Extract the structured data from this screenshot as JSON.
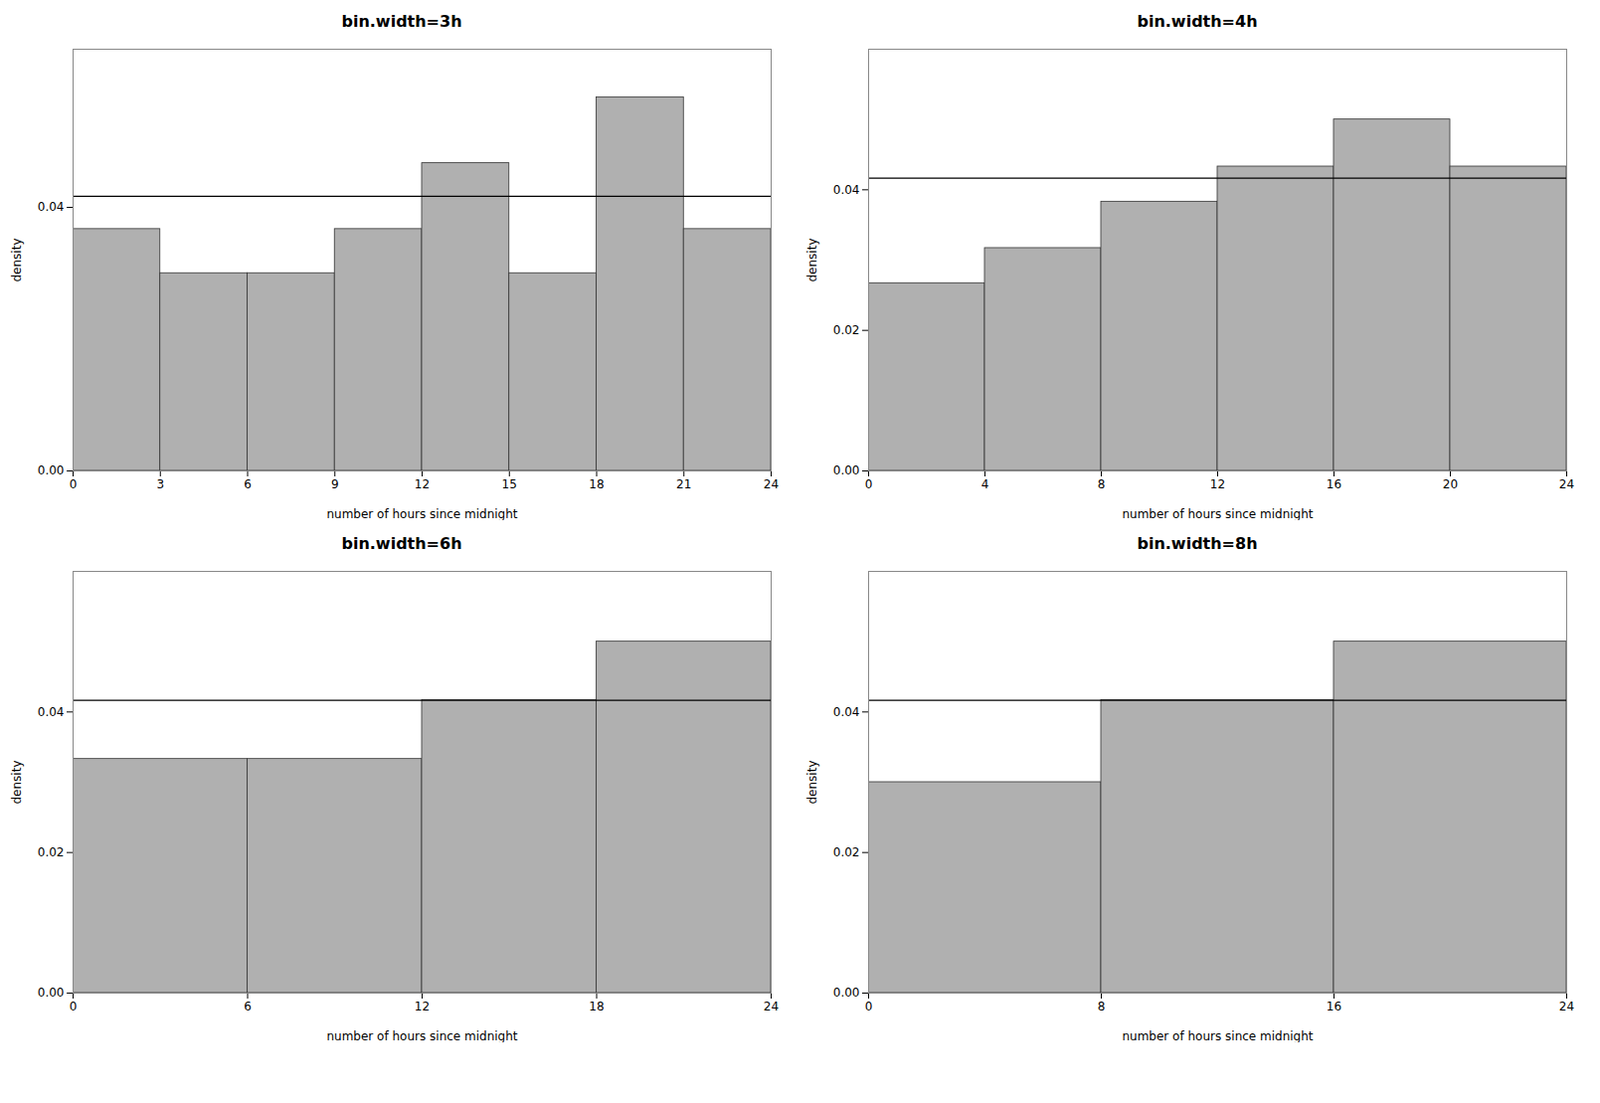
{
  "chart_data": [
    {
      "type": "histogram",
      "title": "bin.width=3h",
      "bins": [
        0,
        3,
        6,
        9,
        12,
        15,
        18,
        21,
        24
      ],
      "values": [
        0.0367,
        0.03,
        0.03,
        0.0367,
        0.0467,
        0.03,
        0.0567,
        0.0367
      ],
      "color": "#b0b0b0",
      "hline": {
        "value": 0.041667,
        "color": "#000000"
      },
      "xlabel": "number of hours since midnight",
      "ylabel": "density",
      "xlim": [
        0,
        24
      ],
      "ylim": [
        0.0,
        0.064
      ],
      "xticks": [
        0,
        3,
        6,
        9,
        12,
        15,
        18,
        21,
        24
      ],
      "yticks": [
        {
          "value": 0.0,
          "label": "0.00"
        },
        0.04
      ]
    },
    {
      "type": "histogram",
      "title": "bin.width=4h",
      "bins": [
        0,
        4,
        8,
        12,
        16,
        20,
        24
      ],
      "values": [
        0.0267,
        0.0317,
        0.0383,
        0.0433,
        0.05,
        0.0433
      ],
      "color": "#b0b0b0",
      "hline": {
        "value": 0.041667,
        "color": "#000000"
      },
      "xlabel": "number of hours since midnight",
      "ylabel": "density",
      "xlim": [
        0,
        24
      ],
      "ylim": [
        0.0,
        0.06
      ],
      "xticks": [
        0,
        4,
        8,
        12,
        16,
        20,
        24
      ],
      "yticks": [
        {
          "value": 0.0,
          "label": "0.00"
        },
        0.02,
        0.04
      ]
    },
    {
      "type": "histogram",
      "title": "bin.width=6h",
      "bins": [
        0,
        6,
        12,
        18,
        24
      ],
      "values": [
        0.0333,
        0.0333,
        0.0417,
        0.05
      ],
      "color": "#b0b0b0",
      "hline": {
        "value": 0.041667,
        "color": "#000000"
      },
      "xlabel": "number of hours since midnight",
      "ylabel": "density",
      "xlim": [
        0,
        24
      ],
      "ylim": [
        0.0,
        0.06
      ],
      "xticks": [
        0,
        6,
        12,
        18,
        24
      ],
      "yticks": [
        {
          "value": 0.0,
          "label": "0.00"
        },
        0.02,
        0.04
      ]
    },
    {
      "type": "histogram",
      "title": "bin.width=8h",
      "bins": [
        0,
        8,
        16,
        24
      ],
      "values": [
        0.03,
        0.0417,
        0.05
      ],
      "color": "#b0b0b0",
      "hline": {
        "value": 0.041667,
        "color": "#000000"
      },
      "xlabel": "number of hours since midnight",
      "ylabel": "density",
      "xlim": [
        0,
        24
      ],
      "ylim": [
        0.0,
        0.06
      ],
      "xticks": [
        0,
        8,
        16,
        24
      ],
      "yticks": [
        {
          "value": 0.0,
          "label": "0.00"
        },
        0.02,
        0.04
      ]
    }
  ]
}
